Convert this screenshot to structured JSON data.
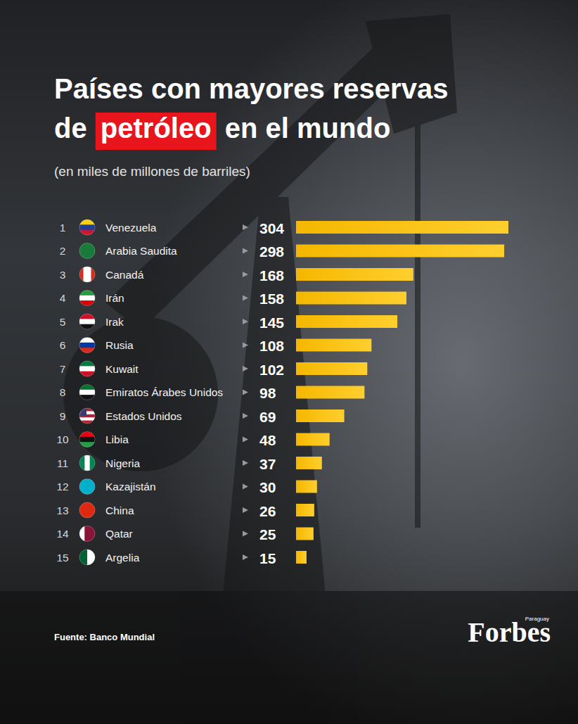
{
  "chart_data": {
    "type": "bar",
    "title": "Países con mayores reservas de petróleo en el mundo",
    "subtitle": "(en miles de millones de barriles)",
    "categories": [
      "Venezuela",
      "Arabia Saudita",
      "Canadá",
      "Irán",
      "Irak",
      "Rusia",
      "Kuwait",
      "Emiratos Árabes Unidos",
      "Estados Unidos",
      "Libia",
      "Nigeria",
      "Kazajistán",
      "China",
      "Qatar",
      "Argelia"
    ],
    "ranks": [
      1,
      2,
      3,
      4,
      5,
      6,
      7,
      8,
      9,
      10,
      11,
      12,
      13,
      14,
      15
    ],
    "values": [
      304,
      298,
      168,
      158,
      145,
      108,
      102,
      98,
      69,
      48,
      37,
      30,
      26,
      25,
      15
    ],
    "xlim": [
      0,
      304
    ],
    "orientation": "horizontal",
    "data_labels": true,
    "tick_labels": false,
    "grid": false,
    "color": "#f5b700",
    "source": "Fuente: Banco Mundial",
    "brand": "Forbes",
    "brand_region": "Paraguay"
  }
}
